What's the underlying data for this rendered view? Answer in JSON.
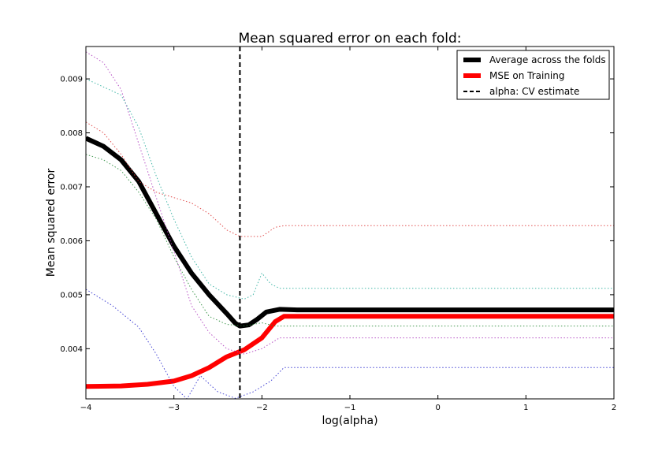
{
  "chart_data": {
    "type": "line",
    "title": "Mean squared error on each fold:",
    "xlabel": "log(alpha)",
    "ylabel": "Mean squared error",
    "xlim": [
      -4,
      2
    ],
    "ylim": [
      0.00307,
      0.0096
    ],
    "x_ticks": [
      -4,
      -3,
      -2,
      -1,
      0,
      1,
      2
    ],
    "x_tick_labels": [
      "−4",
      "−3",
      "−2",
      "−1",
      "0",
      "1",
      "2"
    ],
    "y_ticks": [
      0.004,
      0.005,
      0.006,
      0.007,
      0.008,
      0.009
    ],
    "y_tick_labels": [
      "0.004",
      "0.005",
      "0.006",
      "0.007",
      "0.008",
      "0.009"
    ],
    "grid": false,
    "legend_position": "top-right",
    "legend": [
      {
        "label": "Average across the folds",
        "color": "#000000",
        "style": "thick-solid"
      },
      {
        "label": "MSE on Training",
        "color": "#ff0000",
        "style": "thick-solid"
      },
      {
        "label": "alpha: CV estimate",
        "color": "#000000",
        "style": "dashed"
      }
    ],
    "cv_alpha_log": -2.25,
    "series": [
      {
        "name": "Average across the folds",
        "color": "#000000",
        "role": "average",
        "points": [
          [
            -4,
            0.0079
          ],
          [
            -3.8,
            0.00775
          ],
          [
            -3.6,
            0.0075
          ],
          [
            -3.4,
            0.0071
          ],
          [
            -3.2,
            0.0065
          ],
          [
            -3.0,
            0.0059
          ],
          [
            -2.8,
            0.0054
          ],
          [
            -2.6,
            0.005
          ],
          [
            -2.4,
            0.00465
          ],
          [
            -2.3,
            0.00447
          ],
          [
            -2.25,
            0.00442
          ],
          [
            -2.15,
            0.00444
          ],
          [
            -2.05,
            0.00455
          ],
          [
            -1.95,
            0.00468
          ],
          [
            -1.8,
            0.00473
          ],
          [
            -1.6,
            0.00472
          ],
          [
            2,
            0.00472
          ]
        ]
      },
      {
        "name": "MSE on Training",
        "color": "#ff0000",
        "role": "training",
        "points": [
          [
            -4,
            0.0033
          ],
          [
            -3.6,
            0.00331
          ],
          [
            -3.3,
            0.00334
          ],
          [
            -3.0,
            0.0034
          ],
          [
            -2.8,
            0.0035
          ],
          [
            -2.6,
            0.00365
          ],
          [
            -2.4,
            0.00385
          ],
          [
            -2.2,
            0.00398
          ],
          [
            -2.0,
            0.0042
          ],
          [
            -1.85,
            0.0045
          ],
          [
            -1.75,
            0.0046
          ],
          [
            2,
            0.0046
          ]
        ]
      },
      {
        "color": "#2222cc",
        "role": "fold",
        "points": [
          [
            -4,
            0.0051
          ],
          [
            -3.7,
            0.0048
          ],
          [
            -3.4,
            0.0044
          ],
          [
            -3.2,
            0.0039
          ],
          [
            -3.0,
            0.0033
          ],
          [
            -2.85,
            0.00307
          ],
          [
            -2.7,
            0.0035
          ],
          [
            -2.5,
            0.0032
          ],
          [
            -2.3,
            0.00308
          ],
          [
            -2.1,
            0.0032
          ],
          [
            -1.9,
            0.0034
          ],
          [
            -1.75,
            0.00365
          ],
          [
            2,
            0.00365
          ]
        ]
      },
      {
        "color": "#aa33bb",
        "role": "fold",
        "points": [
          [
            -4,
            0.0095
          ],
          [
            -3.8,
            0.0093
          ],
          [
            -3.6,
            0.0088
          ],
          [
            -3.4,
            0.0078
          ],
          [
            -3.2,
            0.0068
          ],
          [
            -3.0,
            0.0058
          ],
          [
            -2.8,
            0.0048
          ],
          [
            -2.6,
            0.0043
          ],
          [
            -2.4,
            0.004
          ],
          [
            -2.2,
            0.0039
          ],
          [
            -2.0,
            0.004
          ],
          [
            -1.8,
            0.0042
          ],
          [
            2,
            0.0042
          ]
        ]
      },
      {
        "color": "#22aa99",
        "role": "fold",
        "points": [
          [
            -4,
            0.009
          ],
          [
            -3.8,
            0.00885
          ],
          [
            -3.6,
            0.0087
          ],
          [
            -3.4,
            0.0081
          ],
          [
            -3.2,
            0.0072
          ],
          [
            -3.0,
            0.0064
          ],
          [
            -2.8,
            0.0057
          ],
          [
            -2.6,
            0.0052
          ],
          [
            -2.4,
            0.005
          ],
          [
            -2.2,
            0.00492
          ],
          [
            -2.1,
            0.005
          ],
          [
            -2.0,
            0.0054
          ],
          [
            -1.9,
            0.0052
          ],
          [
            -1.8,
            0.00512
          ],
          [
            2,
            0.00512
          ]
        ]
      },
      {
        "color": "#dd3333",
        "role": "fold",
        "points": [
          [
            -4,
            0.0082
          ],
          [
            -3.8,
            0.008
          ],
          [
            -3.6,
            0.0076
          ],
          [
            -3.4,
            0.0071
          ],
          [
            -3.2,
            0.0069
          ],
          [
            -3.0,
            0.0068
          ],
          [
            -2.8,
            0.0067
          ],
          [
            -2.6,
            0.0065
          ],
          [
            -2.4,
            0.0062
          ],
          [
            -2.25,
            0.00608
          ],
          [
            -2.0,
            0.00608
          ],
          [
            -1.85,
            0.00625
          ],
          [
            -1.75,
            0.00628
          ],
          [
            2,
            0.00628
          ]
        ]
      },
      {
        "color": "#228833",
        "role": "fold",
        "points": [
          [
            -4,
            0.0076
          ],
          [
            -3.8,
            0.0075
          ],
          [
            -3.6,
            0.0073
          ],
          [
            -3.4,
            0.0069
          ],
          [
            -3.2,
            0.0064
          ],
          [
            -3.0,
            0.0057
          ],
          [
            -2.8,
            0.0051
          ],
          [
            -2.6,
            0.0046
          ],
          [
            -2.4,
            0.00445
          ],
          [
            -2.2,
            0.00442
          ],
          [
            -2.0,
            0.00448
          ],
          [
            -1.85,
            0.00442
          ],
          [
            2,
            0.00442
          ]
        ]
      }
    ]
  }
}
